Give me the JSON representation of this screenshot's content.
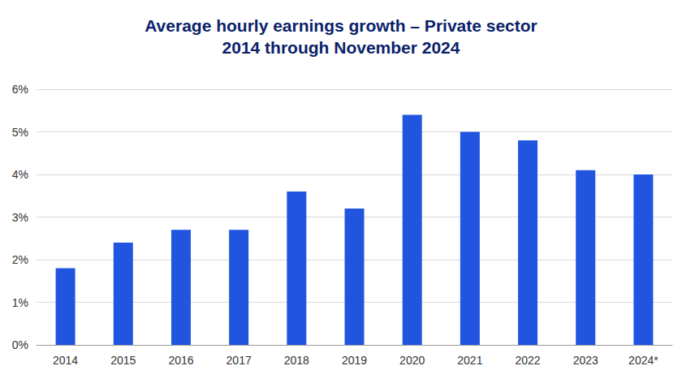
{
  "chart_data": {
    "type": "bar",
    "title": "Average hourly earnings growth – Private sector",
    "subtitle": "2014 through November 2024",
    "categories": [
      "2014",
      "2015",
      "2016",
      "2017",
      "2018",
      "2019",
      "2020",
      "2021",
      "2022",
      "2023",
      "2024*"
    ],
    "values": [
      1.8,
      2.4,
      2.7,
      2.7,
      3.6,
      3.2,
      5.4,
      5.0,
      4.8,
      4.1,
      4.0
    ],
    "color": "#2155e0",
    "ylim": [
      0,
      6
    ],
    "yticks": [
      {
        "value": 0,
        "label": "0%"
      },
      {
        "value": 1,
        "label": "1%"
      },
      {
        "value": 2,
        "label": "2%"
      },
      {
        "value": 3,
        "label": "3%"
      },
      {
        "value": 4,
        "label": "4%"
      },
      {
        "value": 5,
        "label": "5%"
      },
      {
        "value": 6,
        "label": "6%"
      }
    ],
    "grid": true
  }
}
